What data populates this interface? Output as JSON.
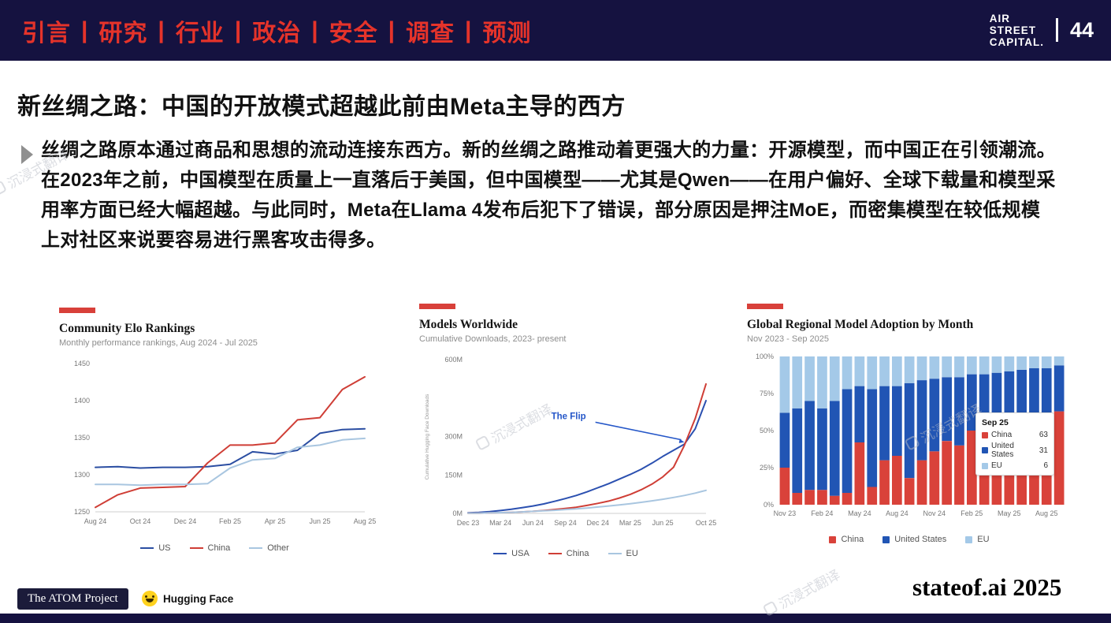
{
  "header": {
    "nav_items": [
      "引言",
      "研究",
      "行业",
      "政治",
      "安全",
      "调查",
      "预测"
    ],
    "logo_lines": [
      "AIR",
      "STREET",
      "CAPITAL."
    ],
    "page_number": "44"
  },
  "slide": {
    "title": "新丝绸之路：中国的开放模式超越此前由Meta主导的西方",
    "body": "丝绸之路原本通过商品和思想的流动连接东西方。新的丝绸之路推动着更强大的力量：开源模型，而中国正在引领潮流。在2023年之前，中国模型在质量上一直落后于美国，但中国模型——尤其是Qwen——在用户偏好、全球下载量和模型采用率方面已经大幅超越。与此同时，Meta在Llama 4发布后犯下了错误，部分原因是押注MoE，而密集模型在较低规模上对社区来说要容易进行黑客攻击得多。"
  },
  "watermark": {
    "text": "沉浸式翻译"
  },
  "footer": {
    "atom_label": "The ATOM Project",
    "huggingface_label": "Hugging Face",
    "brand": "stateof.ai 2025"
  },
  "colors": {
    "navy": "#151240",
    "nav_red": "#e5332a",
    "accent_red": "#d8403a"
  },
  "chart_data": [
    {
      "type": "line",
      "title": "Community Elo Rankings",
      "subtitle": "Monthly performance rankings, Aug 2024 - Jul 2025",
      "n_points": 13,
      "x_tick_labels": [
        "Aug 24",
        "Oct 24",
        "Dec 24",
        "Feb 25",
        "Apr 25",
        "Jun 25",
        "Aug 25"
      ],
      "x_tick_positions": [
        0,
        2,
        4,
        6,
        8,
        10,
        12
      ],
      "ylim": [
        1250,
        1450
      ],
      "yticks": [
        1250,
        1300,
        1350,
        1400,
        1450
      ],
      "series": [
        {
          "name": "US",
          "color": "#2b4ea2",
          "values": [
            1310,
            1311,
            1309,
            1310,
            1310,
            1311,
            1314,
            1331,
            1328,
            1333,
            1356,
            1361,
            1362
          ]
        },
        {
          "name": "China",
          "color": "#cf3e36",
          "values": [
            1256,
            1273,
            1282,
            1283,
            1284,
            1316,
            1340,
            1340,
            1343,
            1374,
            1377,
            1415,
            1432
          ]
        },
        {
          "name": "Other",
          "color": "#a9c6e0",
          "values": [
            1287,
            1287,
            1286,
            1287,
            1287,
            1288,
            1309,
            1320,
            1322,
            1337,
            1340,
            1347,
            1349
          ]
        }
      ]
    },
    {
      "type": "line",
      "title": "Models Worldwide",
      "subtitle": "Cumulative Downloads, 2023- present",
      "ylabel": "Cumulative Hugging Face Downloads",
      "n_points": 23,
      "x_tick_labels": [
        "Dec 23",
        "Mar 24",
        "Jun 24",
        "Sep 24",
        "Dec 24",
        "Mar 25",
        "Jun 25",
        "Oct 25"
      ],
      "x_tick_positions": [
        0,
        3,
        6,
        9,
        12,
        15,
        18,
        22
      ],
      "ylim": [
        0,
        600
      ],
      "yticks": [
        {
          "v": 0,
          "label": "0M"
        },
        {
          "v": 150,
          "label": "150M"
        },
        {
          "v": 300,
          "label": "300M"
        },
        {
          "v": 600,
          "label": "600M"
        }
      ],
      "annotation": {
        "text": "The Flip",
        "color": "#2456c8",
        "text_at": [
          9.3,
          368
        ],
        "arrow_to": [
          20.0,
          278
        ]
      },
      "series": [
        {
          "name": "USA",
          "color": "#2b50b0",
          "values": [
            2,
            4,
            7,
            11,
            16,
            22,
            29,
            37,
            47,
            58,
            70,
            84,
            100,
            116,
            134,
            152,
            172,
            196,
            222,
            246,
            270,
            330,
            440
          ]
        },
        {
          "name": "China",
          "color": "#cf3e36",
          "values": [
            1,
            1,
            2,
            3,
            4,
            6,
            8,
            11,
            15,
            19,
            24,
            31,
            39,
            48,
            60,
            74,
            92,
            114,
            142,
            180,
            265,
            370,
            505
          ]
        },
        {
          "name": "EU",
          "color": "#a9c6e0",
          "values": [
            1,
            1,
            2,
            3,
            4,
            6,
            8,
            10,
            12,
            15,
            18,
            21,
            25,
            29,
            33,
            38,
            43,
            49,
            55,
            62,
            70,
            79,
            90
          ]
        }
      ]
    },
    {
      "type": "stacked_bar",
      "title": "Global Regional Model Adoption by Month",
      "subtitle": "Nov 2023 - Sep 2025",
      "x_tick_labels": [
        "Nov 23",
        "Feb 24",
        "May 24",
        "Aug 24",
        "Nov 24",
        "Feb 25",
        "May 25",
        "Aug 25"
      ],
      "x_tick_positions": [
        0,
        3,
        6,
        9,
        12,
        15,
        18,
        21
      ],
      "yticks": [
        "0%",
        "25%",
        "50%",
        "75%",
        "100%"
      ],
      "series": [
        {
          "name": "China",
          "color": "#d9423a",
          "values": [
            25,
            8,
            10,
            10,
            6,
            8,
            42,
            12,
            30,
            33,
            18,
            30,
            36,
            43,
            40,
            50,
            47,
            55,
            52,
            56,
            58,
            60,
            63
          ]
        },
        {
          "name": "United States",
          "color": "#2155b4",
          "values": [
            37,
            57,
            60,
            55,
            64,
            70,
            38,
            66,
            50,
            47,
            64,
            54,
            49,
            43,
            46,
            38,
            41,
            34,
            38,
            35,
            34,
            32,
            31
          ]
        },
        {
          "name": "EU",
          "color": "#a4c9e8",
          "values": [
            38,
            35,
            30,
            35,
            30,
            22,
            20,
            22,
            20,
            20,
            18,
            16,
            15,
            14,
            14,
            12,
            12,
            11,
            10,
            9,
            8,
            8,
            6
          ]
        }
      ],
      "tooltip": {
        "title": "Sep 25",
        "rows": [
          {
            "name": "China",
            "value": "63",
            "color": "#d9423a"
          },
          {
            "name": "United States",
            "value": "31",
            "color": "#2155b4"
          },
          {
            "name": "EU",
            "value": "6",
            "color": "#a4c9e8"
          }
        ]
      }
    }
  ]
}
